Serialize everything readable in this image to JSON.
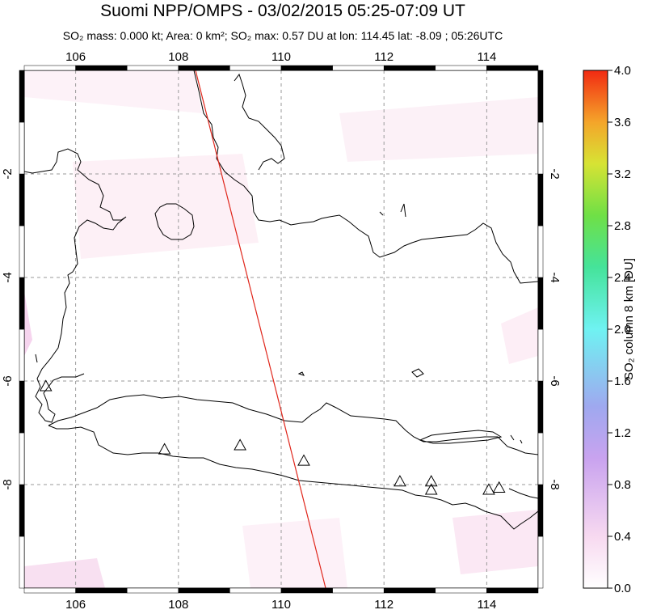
{
  "title": "Suomi NPP/OMPS - 03/02/2015 05:25-07:09 UT",
  "subtitle": "SO₂ mass: 0.000 kt; Area: 0 km²; SO₂ max: 0.57 DU at lon: 114.45 lat: -8.09 ; 05:26UTC",
  "map": {
    "lon_range": [
      105,
      115
    ],
    "lat_range": [
      -10,
      0
    ],
    "lon_ticks": [
      "106",
      "108",
      "110",
      "112",
      "114"
    ],
    "lat_ticks": [
      "-2",
      "-4",
      "-6",
      "-8"
    ],
    "grid": true,
    "volcanoes": [
      {
        "lon": 105.42,
        "lat": -6.1
      },
      {
        "lon": 107.73,
        "lat": -7.32
      },
      {
        "lon": 109.2,
        "lat": -7.24
      },
      {
        "lon": 110.44,
        "lat": -7.54
      },
      {
        "lon": 112.31,
        "lat": -7.94
      },
      {
        "lon": 112.92,
        "lat": -7.94
      },
      {
        "lon": 112.92,
        "lat": -8.1
      },
      {
        "lon": 114.04,
        "lat": -8.1
      },
      {
        "lon": 114.24,
        "lat": -8.06
      }
    ],
    "orbit_track_color": "#e0261b"
  },
  "colorbar": {
    "title": "SO₂ column 8 km [DU]",
    "ticks": [
      "0.0",
      "0.4",
      "0.8",
      "1.2",
      "1.6",
      "2.0",
      "2.4",
      "2.8",
      "3.2",
      "3.6",
      "4.0"
    ],
    "range": [
      0,
      4
    ]
  }
}
